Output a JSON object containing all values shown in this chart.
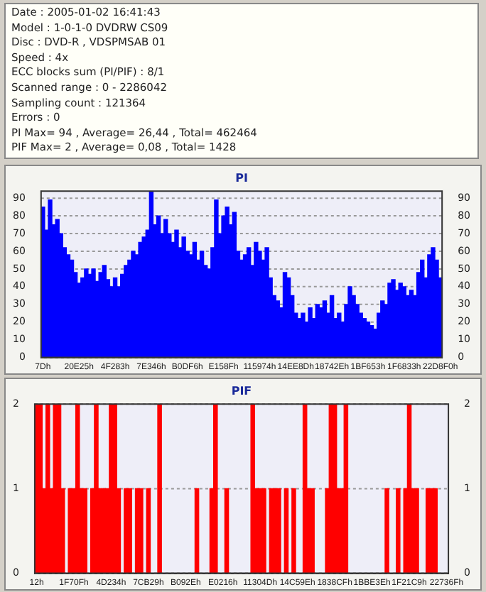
{
  "chart_data": [
    {
      "type": "other",
      "annotations": [
        "Date : 2005-01-02 16:41:43",
        "Model : 1-0-1-0 DVDRW CS09",
        "Disc : DVD-R , VDSPMSAB 01",
        "Speed : 4x",
        "ECC blocks sum (PI/PIF) : 8/1",
        "Scanned range : 0 - 2286042",
        "Sampling count : 121364",
        "Errors : 0",
        "PI Max= 94 , Average= 26,44 , Total= 462464",
        "PIF Max= 2 , Average= 0,08 , Total= 1428"
      ]
    },
    {
      "type": "bar",
      "title": "PI",
      "color": "#0000ff",
      "ylim": [
        0,
        94
      ],
      "yticks": [
        0,
        10,
        20,
        30,
        40,
        50,
        60,
        70,
        80,
        90
      ],
      "y2lim": [
        0,
        94
      ],
      "y2ticks": [
        0,
        10,
        20,
        30,
        40,
        50,
        60,
        70,
        80,
        90
      ],
      "grid": "y",
      "categories": [
        "7Dh",
        null,
        null,
        null,
        null,
        null,
        null,
        null,
        null,
        null,
        "20E25h",
        null,
        null,
        null,
        null,
        null,
        null,
        null,
        null,
        null,
        "4F283h",
        null,
        null,
        null,
        null,
        null,
        null,
        null,
        null,
        null,
        "7E346h",
        null,
        null,
        null,
        null,
        null,
        null,
        null,
        null,
        null,
        "B0DF6h",
        null,
        null,
        null,
        null,
        null,
        null,
        null,
        null,
        null,
        "E158Fh",
        null,
        null,
        null,
        null,
        null,
        null,
        null,
        null,
        null,
        "115974h",
        null,
        null,
        null,
        null,
        null,
        null,
        null,
        null,
        null,
        "14EE8Dh",
        null,
        null,
        null,
        null,
        null,
        null,
        null,
        null,
        null,
        "18742Eh",
        null,
        null,
        null,
        null,
        null,
        null,
        null,
        null,
        null,
        "1BF653h",
        null,
        null,
        null,
        null,
        null,
        null,
        null,
        null,
        null,
        "1F6833h",
        null,
        null,
        null,
        null,
        null,
        null,
        null,
        null,
        null,
        "22D8F0h"
      ],
      "values": [
        85,
        72,
        89,
        75,
        78,
        70,
        62,
        58,
        55,
        48,
        42,
        45,
        50,
        47,
        50,
        43,
        48,
        52,
        44,
        40,
        45,
        40,
        47,
        52,
        55,
        60,
        58,
        65,
        68,
        72,
        94,
        75,
        80,
        70,
        78,
        70,
        65,
        72,
        62,
        68,
        60,
        58,
        65,
        55,
        60,
        52,
        50,
        62,
        89,
        70,
        80,
        85,
        75,
        82,
        60,
        55,
        58,
        62,
        52,
        65,
        60,
        55,
        62,
        45,
        35,
        32,
        28,
        48,
        45,
        35,
        25,
        22,
        25,
        20,
        28,
        22,
        30,
        28,
        32,
        25,
        35,
        22,
        25,
        20,
        30,
        40,
        35,
        30,
        25,
        22,
        20,
        18,
        16,
        25,
        32,
        30,
        42,
        44,
        38,
        42,
        40,
        35,
        38,
        35,
        48,
        55,
        45,
        58,
        62,
        55,
        45
      ]
    },
    {
      "type": "bar",
      "title": "PIF",
      "color": "#ff0000",
      "ylim": [
        0,
        2
      ],
      "yticks": [
        0,
        1,
        2
      ],
      "y2lim": [
        0,
        2
      ],
      "y2ticks": [
        0,
        1,
        2
      ],
      "grid": "y",
      "categories": [
        "12h",
        null,
        null,
        null,
        null,
        null,
        null,
        null,
        null,
        null,
        "1F70Fh",
        null,
        null,
        null,
        null,
        null,
        null,
        null,
        null,
        null,
        "4D234h",
        null,
        null,
        null,
        null,
        null,
        null,
        null,
        null,
        null,
        "7CB29h",
        null,
        null,
        null,
        null,
        null,
        null,
        null,
        null,
        null,
        "B092Eh",
        null,
        null,
        null,
        null,
        null,
        null,
        null,
        null,
        null,
        "E0216h",
        null,
        null,
        null,
        null,
        null,
        null,
        null,
        null,
        null,
        "11304Dh",
        null,
        null,
        null,
        null,
        null,
        null,
        null,
        null,
        null,
        "14C59Eh",
        null,
        null,
        null,
        null,
        null,
        null,
        null,
        null,
        null,
        "1838CFh",
        null,
        null,
        null,
        null,
        null,
        null,
        null,
        null,
        null,
        "1BBE3Eh",
        null,
        null,
        null,
        null,
        null,
        null,
        null,
        null,
        null,
        "1F21C9h",
        null,
        null,
        null,
        null,
        null,
        null,
        null,
        null,
        null,
        "22736Fh"
      ],
      "values": [
        2,
        2,
        1,
        2,
        1,
        2,
        2,
        1,
        0,
        1,
        1,
        2,
        1,
        1,
        0,
        1,
        2,
        1,
        1,
        1,
        2,
        2,
        1,
        0,
        1,
        1,
        0,
        1,
        1,
        0,
        1,
        0,
        0,
        2,
        0,
        0,
        0,
        0,
        0,
        0,
        0,
        0,
        0,
        1,
        0,
        0,
        0,
        1,
        2,
        0,
        0,
        1,
        0,
        0,
        0,
        0,
        0,
        0,
        2,
        1,
        1,
        1,
        0,
        1,
        1,
        1,
        0,
        1,
        0,
        1,
        0,
        0,
        2,
        1,
        1,
        0,
        0,
        0,
        1,
        2,
        2,
        1,
        1,
        2,
        0,
        0,
        0,
        0,
        0,
        0,
        0,
        0,
        0,
        0,
        1,
        0,
        0,
        1,
        0,
        1,
        2,
        1,
        1,
        0,
        0,
        1,
        1,
        1,
        0,
        0,
        0
      ]
    }
  ]
}
